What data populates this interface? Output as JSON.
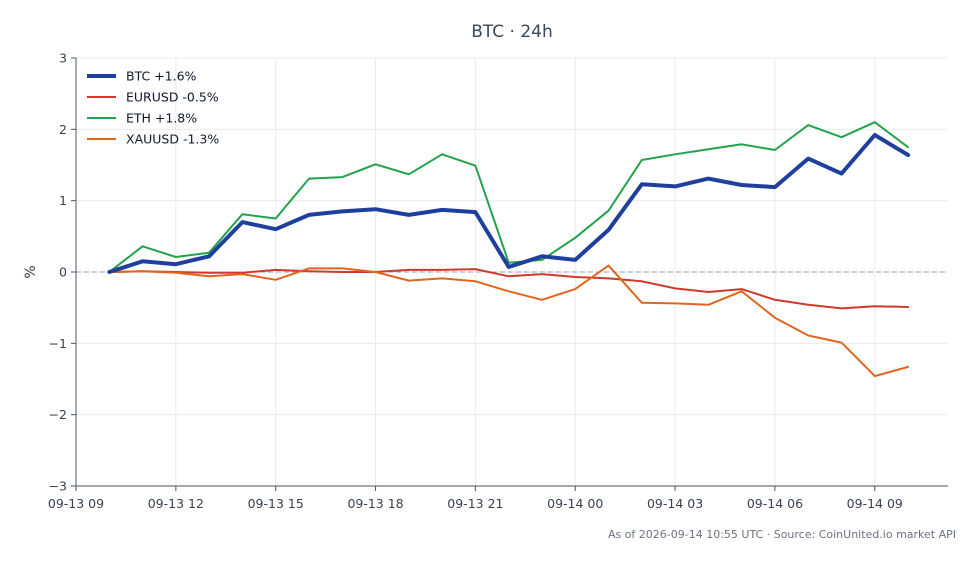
{
  "chart_data": {
    "type": "line",
    "title": "BTC · 24h",
    "ylabel": "%",
    "xlabel": "",
    "ylim": [
      -3,
      3
    ],
    "x_hours": [
      10,
      11,
      12,
      13,
      14,
      15,
      16,
      17,
      18,
      19,
      20,
      21,
      22,
      23,
      24,
      25,
      26,
      27,
      28,
      29,
      30,
      31,
      32,
      33,
      34
    ],
    "x_start": "09-13 10:00",
    "xlim_hours": [
      9,
      35.2
    ],
    "xticks": [
      {
        "h": 9,
        "label": "09-13 09"
      },
      {
        "h": 12,
        "label": "09-13 12"
      },
      {
        "h": 15,
        "label": "09-13 15"
      },
      {
        "h": 18,
        "label": "09-13 18"
      },
      {
        "h": 21,
        "label": "09-13 21"
      },
      {
        "h": 24,
        "label": "09-14 00"
      },
      {
        "h": 27,
        "label": "09-14 03"
      },
      {
        "h": 30,
        "label": "09-14 06"
      },
      {
        "h": 33,
        "label": "09-14 09"
      }
    ],
    "yticks": [
      {
        "v": 3,
        "label": "3"
      },
      {
        "v": 2,
        "label": "2"
      },
      {
        "v": 1,
        "label": "1"
      },
      {
        "v": 0,
        "label": "0"
      },
      {
        "v": -1,
        "label": "−1"
      },
      {
        "v": -2,
        "label": "−2"
      },
      {
        "v": -3,
        "label": "−3"
      }
    ],
    "grid": true,
    "zero_line": true,
    "legend_position": "top-left",
    "series": [
      {
        "name": "BTC +1.6%",
        "color": "#1f3f9e",
        "emphasis": true,
        "values": [
          0.0,
          0.15,
          0.11,
          0.22,
          0.7,
          0.6,
          0.8,
          0.85,
          0.88,
          0.8,
          0.87,
          0.84,
          0.07,
          0.22,
          0.17,
          0.59,
          1.23,
          1.2,
          1.31,
          1.22,
          1.19,
          1.59,
          1.38,
          1.92,
          1.64
        ]
      },
      {
        "name": "EURUSD -0.5%",
        "color": "#d03a2c",
        "emphasis": false,
        "values": [
          0.0,
          0.01,
          0.0,
          -0.01,
          -0.01,
          0.03,
          0.01,
          0.0,
          0.0,
          0.03,
          0.03,
          0.04,
          -0.06,
          -0.03,
          -0.07,
          -0.09,
          -0.13,
          -0.23,
          -0.28,
          -0.24,
          -0.39,
          -0.46,
          -0.51,
          -0.48,
          -0.49
        ]
      },
      {
        "name": "ETH +1.8%",
        "color": "#22a24a",
        "emphasis": false,
        "values": [
          0.0,
          0.36,
          0.21,
          0.27,
          0.81,
          0.75,
          1.31,
          1.33,
          1.51,
          1.37,
          1.65,
          1.49,
          0.13,
          0.17,
          0.48,
          0.86,
          1.57,
          1.65,
          1.72,
          1.79,
          1.71,
          2.06,
          1.89,
          2.1,
          1.75
        ]
      },
      {
        "name": "XAUUSD -1.3%",
        "color": "#e0661e",
        "emphasis": false,
        "values": [
          0.0,
          0.01,
          -0.01,
          -0.06,
          -0.03,
          -0.11,
          0.05,
          0.05,
          0.0,
          -0.12,
          -0.09,
          -0.13,
          -0.27,
          -0.39,
          -0.24,
          0.09,
          -0.43,
          -0.44,
          -0.46,
          -0.27,
          -0.64,
          -0.89,
          -0.99,
          -1.46,
          -1.33
        ]
      }
    ]
  },
  "footer": "As of 2026-09-14 10:55 UTC · Source: CoinUnited.io market API"
}
